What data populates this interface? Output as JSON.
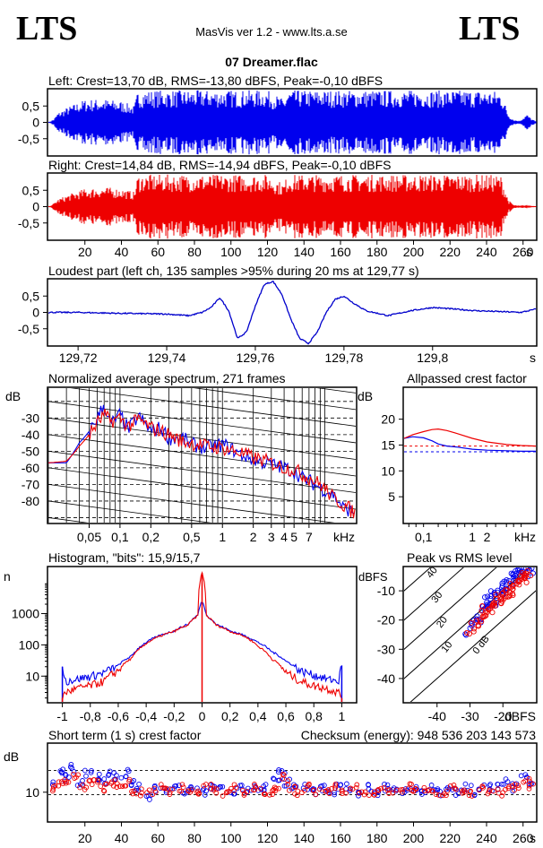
{
  "header": {
    "logo_left": "LTS",
    "logo_right": "LTS",
    "app_title": "MasVis ver 1.2 - www.lts.a.se",
    "file_name": "07 Dreamer.flac"
  },
  "colors": {
    "left": "#0000ee",
    "right": "#ee0000"
  },
  "chart_data": [
    {
      "type": "area",
      "id": "left-waveform",
      "title": "Left: Crest=13,70 dB, RMS=-13,80 dBFS, Peak=-0,10 dBFS",
      "ylim": [
        -1,
        1
      ],
      "y_tick_labels": [
        "0,5",
        "0",
        "-0,5"
      ],
      "x_range_s": [
        0,
        267
      ],
      "envelope": {
        "t": [
          0,
          3,
          5,
          10,
          20,
          30,
          40,
          47,
          49,
          60,
          80,
          100,
          120,
          129,
          131,
          140,
          160,
          180,
          200,
          220,
          240,
          248,
          252,
          255,
          258,
          262,
          265,
          267
        ],
        "amp": [
          0.0,
          0.1,
          0.28,
          0.45,
          0.7,
          0.72,
          0.65,
          0.5,
          0.97,
          0.98,
          0.98,
          0.98,
          0.98,
          0.7,
          0.98,
          0.98,
          0.98,
          0.98,
          0.98,
          0.98,
          0.98,
          0.95,
          0.25,
          0.08,
          0.05,
          0.25,
          0.1,
          0.03
        ]
      }
    },
    {
      "type": "area",
      "id": "right-waveform",
      "title": "Right: Crest=14,84 dB, RMS=-14,94 dBFS, Peak=-0,10 dBFS",
      "ylim": [
        -1,
        1
      ],
      "y_tick_labels": [
        "0,5",
        "0",
        "-0,5"
      ],
      "x_range_s": [
        0,
        267
      ],
      "x_ticks": [
        20,
        40,
        60,
        80,
        100,
        120,
        140,
        160,
        180,
        200,
        220,
        240,
        260
      ],
      "x_unit": "s",
      "envelope": {
        "t": [
          0,
          3,
          5,
          10,
          20,
          30,
          40,
          47,
          49,
          60,
          80,
          100,
          120,
          129,
          131,
          140,
          160,
          180,
          200,
          220,
          240,
          248,
          252,
          255,
          258,
          262,
          265,
          267
        ],
        "amp": [
          0.0,
          0.1,
          0.22,
          0.35,
          0.55,
          0.6,
          0.55,
          0.45,
          0.97,
          0.98,
          0.98,
          0.98,
          0.98,
          0.7,
          0.98,
          0.98,
          0.98,
          0.98,
          0.98,
          0.98,
          0.98,
          0.95,
          0.2,
          0.05,
          0.03,
          0.05,
          0.03,
          0.02
        ]
      }
    },
    {
      "type": "line",
      "id": "loudest-part",
      "title": "Loudest part (left  ch, 135 samples >95% during 20 ms at 129,77 s)",
      "xlim": [
        129.7133,
        129.8233
      ],
      "ylim": [
        -1,
        1
      ],
      "x_ticks": [
        129.72,
        129.74,
        129.76,
        129.78,
        129.8
      ],
      "x_tick_labels": [
        "129,72",
        "129,74",
        "129,76",
        "129,78",
        "129,8"
      ],
      "x_unit": "s",
      "y_tick_labels": [
        "0,5",
        "0",
        "-0,5"
      ],
      "series": [
        {
          "color": "#0000cc",
          "x": [
            129.7133,
            129.72,
            129.73,
            129.74,
            129.745,
            129.748,
            129.75,
            129.752,
            129.754,
            129.756,
            129.758,
            129.76,
            129.762,
            129.764,
            129.766,
            129.768,
            129.77,
            129.772,
            129.774,
            129.776,
            129.778,
            129.78,
            129.782,
            129.785,
            129.79,
            129.795,
            129.8,
            129.81,
            129.82,
            129.8233
          ],
          "y": [
            0.0,
            0.0,
            -0.03,
            -0.05,
            -0.1,
            0.0,
            0.15,
            0.45,
            0.05,
            -0.8,
            -0.6,
            0.2,
            0.85,
            0.95,
            0.55,
            -0.2,
            -0.8,
            -0.95,
            -0.6,
            0.0,
            0.4,
            0.5,
            0.3,
            0.05,
            -0.1,
            0.05,
            0.15,
            0.05,
            0.0,
            0.1
          ]
        }
      ]
    },
    {
      "type": "line",
      "id": "average-spectrum",
      "title": "Normalized average spectrum, 271 frames",
      "ylabel": "dB",
      "x_scale": "log",
      "xlim": [
        0.02,
        20
      ],
      "ylim": [
        -93,
        -12
      ],
      "x_ticks": [
        0.05,
        0.1,
        0.2,
        0.5,
        1,
        2,
        3,
        4,
        5,
        7
      ],
      "x_tick_labels": [
        "0,05",
        "0,1",
        "0,2",
        "0,5",
        "1",
        "2",
        "3",
        "4",
        "5",
        "7"
      ],
      "x_unit": "kHz",
      "y_ticks": [
        -30,
        -40,
        -50,
        -60,
        -70,
        -80
      ],
      "series": [
        {
          "name": "left",
          "color": "#0000ee",
          "x": [
            0.02,
            0.03,
            0.04,
            0.05,
            0.06,
            0.07,
            0.08,
            0.1,
            0.12,
            0.15,
            0.2,
            0.25,
            0.3,
            0.4,
            0.5,
            0.7,
            1,
            1.5,
            2,
            3,
            4,
            5,
            6,
            7,
            9,
            12,
            15,
            20
          ],
          "y": [
            -57,
            -57,
            -45,
            -38,
            -30,
            -22,
            -34,
            -28,
            -37,
            -29,
            -38,
            -36,
            -42,
            -42,
            -46,
            -48,
            -46,
            -52,
            -55,
            -58,
            -60,
            -62,
            -66,
            -68,
            -72,
            -76,
            -84,
            -87
          ]
        },
        {
          "name": "right",
          "color": "#ee0000",
          "x": [
            0.02,
            0.03,
            0.04,
            0.05,
            0.06,
            0.07,
            0.08,
            0.1,
            0.12,
            0.15,
            0.2,
            0.25,
            0.3,
            0.4,
            0.5,
            0.7,
            1,
            1.5,
            2,
            3,
            4,
            5,
            6,
            7,
            9,
            12,
            15,
            20
          ],
          "y": [
            -57,
            -56,
            -47,
            -40,
            -33,
            -28,
            -32,
            -30,
            -35,
            -31,
            -36,
            -38,
            -40,
            -44,
            -45,
            -47,
            -48,
            -51,
            -54,
            -57,
            -60,
            -61,
            -64,
            -66,
            -70,
            -78,
            -82,
            -88
          ]
        }
      ]
    },
    {
      "type": "line",
      "id": "allpassed-crest",
      "title": "Allpassed crest factor",
      "ylabel": "dB",
      "x_scale": "log",
      "xlim": [
        0.04,
        20
      ],
      "ylim": [
        0,
        26
      ],
      "x_ticks": [
        0.1,
        1,
        2
      ],
      "x_tick_labels": [
        "0,1",
        "1",
        "2"
      ],
      "x_unit": "kHz",
      "y_ticks": [
        20,
        15,
        10,
        5
      ],
      "reference_lines": [
        {
          "color": "#ee0000",
          "y": 14.8
        },
        {
          "color": "#0000ee",
          "y": 13.7
        }
      ],
      "series": [
        {
          "name": "left",
          "color": "#0000ee",
          "x": [
            0.04,
            0.06,
            0.1,
            0.15,
            0.2,
            0.3,
            0.5,
            1,
            2,
            5,
            10,
            20
          ],
          "y": [
            16.3,
            16.6,
            16.4,
            15.8,
            15.2,
            14.8,
            14.6,
            14.2,
            14.0,
            13.9,
            13.8,
            13.8
          ]
        },
        {
          "name": "right",
          "color": "#ee0000",
          "x": [
            0.04,
            0.06,
            0.1,
            0.15,
            0.2,
            0.3,
            0.5,
            1,
            2,
            5,
            10,
            20
          ],
          "y": [
            16.3,
            17.0,
            17.6,
            18.0,
            18.1,
            17.8,
            17.2,
            16.3,
            15.6,
            15.1,
            14.9,
            14.8
          ]
        }
      ]
    },
    {
      "type": "line",
      "id": "histogram",
      "title": "Histogram, \"bits\": 15,9/15,7",
      "ylabel": "n",
      "y_scale": "log",
      "xlim": [
        -1.1,
        1.1
      ],
      "ylim": [
        1.5,
        30000
      ],
      "x_ticks": [
        -1,
        -0.8,
        -0.6,
        -0.4,
        -0.2,
        0,
        0.2,
        0.4,
        0.6,
        0.8,
        1
      ],
      "x_tick_labels": [
        "-1",
        "-0,8",
        "-0,6",
        "-0,4",
        "-0,2",
        "0",
        "0,2",
        "0,4",
        "0,6",
        "0,8",
        "1"
      ],
      "y_ticks": [
        1000,
        100,
        10
      ],
      "y_tick_labels": [
        "1000",
        "100",
        "10"
      ],
      "series": [
        {
          "name": "left",
          "color": "#0000ee",
          "x": [
            -1,
            -0.98,
            -0.9,
            -0.8,
            -0.7,
            -0.6,
            -0.5,
            -0.4,
            -0.3,
            -0.2,
            -0.1,
            -0.03,
            0,
            0.03,
            0.1,
            0.2,
            0.3,
            0.4,
            0.5,
            0.6,
            0.7,
            0.8,
            0.9,
            0.98,
            1
          ],
          "y": [
            20,
            7,
            8,
            10,
            13,
            22,
            45,
            120,
            200,
            280,
            450,
            900,
            2500,
            900,
            450,
            280,
            200,
            120,
            60,
            30,
            15,
            11,
            8,
            7,
            22
          ]
        },
        {
          "name": "right",
          "color": "#ee0000",
          "x": [
            -1,
            -0.98,
            -0.9,
            -0.8,
            -0.7,
            -0.6,
            -0.5,
            -0.4,
            -0.3,
            -0.2,
            -0.1,
            -0.03,
            0,
            0.03,
            0.1,
            0.2,
            0.3,
            0.4,
            0.5,
            0.6,
            0.7,
            0.8,
            0.9,
            0.98,
            1
          ],
          "y": [
            2,
            3,
            4,
            5,
            7,
            15,
            38,
            110,
            190,
            270,
            430,
            850,
            20000,
            850,
            430,
            270,
            190,
            90,
            35,
            13,
            7,
            5,
            4,
            3,
            2
          ]
        }
      ]
    },
    {
      "type": "scatter",
      "id": "peak-vs-rms",
      "title": "Peak vs RMS level",
      "ylabel": "dBFS",
      "xlabel": "dBFS",
      "xlim": [
        -50,
        -10
      ],
      "ylim": [
        -48,
        -2
      ],
      "x_ticks": [
        -40,
        -30,
        -20
      ],
      "y_ticks": [
        -10,
        -20,
        -30,
        -40
      ],
      "diagonal_labels": [
        "40",
        "30",
        "20",
        "10",
        "0 dB"
      ],
      "diagonal_offsets": [
        40,
        30,
        20,
        10,
        0
      ],
      "series": [
        {
          "name": "left",
          "color": "#0000ee",
          "x": [
            -31,
            -29,
            -28,
            -27,
            -26,
            -25,
            -24,
            -23,
            -22,
            -21,
            -20,
            -19,
            -18,
            -17,
            -16,
            -15,
            -14,
            -13,
            -12,
            -24.5,
            -22.5,
            -20.5,
            -18.5,
            -16.5,
            -14.5
          ],
          "y": [
            -24,
            -21,
            -19,
            -20,
            -17,
            -16,
            -15,
            -12,
            -14,
            -11,
            -10,
            -8,
            -9,
            -6,
            -5,
            -4,
            -3,
            -4,
            -3,
            -13,
            -11,
            -9,
            -7,
            -5,
            -3.5
          ]
        },
        {
          "name": "right",
          "color": "#ee0000",
          "x": [
            -30,
            -28.5,
            -27,
            -26,
            -25,
            -24,
            -23,
            -22,
            -21,
            -20,
            -19,
            -18,
            -17,
            -16,
            -15,
            -14,
            -13,
            -12,
            -25.5,
            -23.5,
            -21.5,
            -19.5,
            -17.5,
            -15.5,
            -13.5
          ],
          "y": [
            -25,
            -22,
            -21,
            -19,
            -18,
            -17,
            -16,
            -15,
            -14,
            -13,
            -12,
            -11,
            -10,
            -9,
            -7,
            -6,
            -5,
            -4,
            -16,
            -14,
            -12,
            -10,
            -8,
            -6.5,
            -4.5
          ]
        }
      ]
    },
    {
      "type": "scatter",
      "id": "short-term-crest",
      "title": "Short term (1 s) crest factor",
      "annotation": "Checksum (energy):   948 536 203 143 573",
      "ylabel": "dB",
      "xlim": [
        0,
        267
      ],
      "ylim": [
        4,
        20
      ],
      "y_ticks": [
        10
      ],
      "reference_lines": [
        {
          "y": 14.5
        },
        {
          "y": 9.5
        }
      ],
      "x_ticks": [
        20,
        40,
        60,
        80,
        100,
        120,
        140,
        160,
        180,
        200,
        220,
        240,
        260
      ],
      "x_unit": "s",
      "series": [
        {
          "name": "left",
          "color": "#0000ee",
          "x": [
            2,
            6,
            10,
            14,
            18,
            22,
            26,
            30,
            34,
            38,
            42,
            46,
            50,
            55,
            60,
            65,
            70,
            75,
            80,
            85,
            90,
            95,
            100,
            105,
            110,
            115,
            120,
            125,
            128,
            131,
            135,
            140,
            145,
            150,
            155,
            160,
            165,
            170,
            175,
            180,
            185,
            190,
            195,
            200,
            205,
            210,
            215,
            220,
            225,
            230,
            235,
            240,
            245,
            250,
            255,
            260,
            264
          ],
          "y": [
            12,
            14,
            13,
            15,
            12,
            14,
            13,
            12,
            14,
            13,
            14,
            12,
            11,
            9,
            11,
            10,
            11,
            10,
            11,
            10,
            11,
            11,
            10,
            11,
            10,
            11,
            11,
            13,
            14,
            12,
            11,
            11,
            10,
            11,
            10,
            11,
            11,
            10,
            11,
            10,
            11,
            11,
            10,
            11,
            10,
            11,
            10,
            11,
            10,
            11,
            10,
            11,
            11,
            12,
            11,
            13,
            12
          ]
        },
        {
          "name": "right",
          "color": "#ee0000",
          "x": [
            3,
            7,
            11,
            15,
            19,
            23,
            27,
            31,
            35,
            39,
            43,
            47,
            52,
            57,
            62,
            67,
            72,
            77,
            82,
            87,
            92,
            97,
            102,
            107,
            112,
            117,
            122,
            126,
            130,
            133,
            137,
            142,
            147,
            152,
            157,
            162,
            167,
            172,
            177,
            182,
            187,
            192,
            197,
            202,
            207,
            212,
            217,
            222,
            227,
            232,
            237,
            242,
            247,
            252,
            257,
            262,
            265
          ],
          "y": [
            11,
            12,
            12,
            13,
            11,
            12,
            12,
            11,
            12,
            11,
            12,
            10,
            10,
            10,
            11,
            10,
            11,
            10,
            10,
            11,
            10,
            10,
            11,
            10,
            11,
            10,
            10,
            11,
            13,
            11,
            10,
            11,
            10,
            10,
            11,
            10,
            11,
            10,
            10,
            11,
            10,
            10,
            11,
            10,
            11,
            10,
            10,
            11,
            10,
            10,
            11,
            10,
            10,
            11,
            11,
            12,
            11
          ]
        }
      ]
    }
  ]
}
